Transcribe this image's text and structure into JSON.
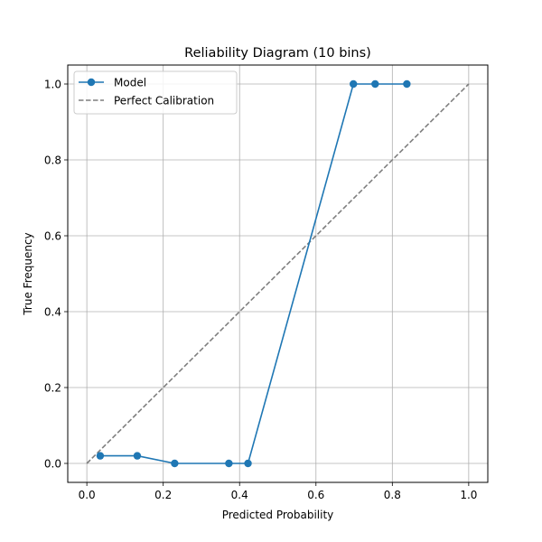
{
  "chart_data": {
    "type": "line",
    "title": "Reliability Diagram (10 bins)",
    "xlabel": "Predicted Probability",
    "ylabel": "True Frequency",
    "xlim": [
      -0.05,
      1.05
    ],
    "ylim": [
      -0.05,
      1.05
    ],
    "xticks": [
      0.0,
      0.2,
      0.4,
      0.6,
      0.8,
      1.0
    ],
    "yticks": [
      0.0,
      0.2,
      0.4,
      0.6,
      0.8,
      1.0
    ],
    "xtick_labels": [
      "0.0",
      "0.2",
      "0.4",
      "0.6",
      "0.8",
      "1.0"
    ],
    "ytick_labels": [
      "0.0",
      "0.2",
      "0.4",
      "0.6",
      "0.8",
      "1.0"
    ],
    "grid": true,
    "legend_position": "top-left",
    "series": [
      {
        "name": "Model",
        "style": "solid-with-markers",
        "color": "#1f77b4",
        "x": [
          0.035,
          0.132,
          0.23,
          0.372,
          0.422,
          0.698,
          0.755,
          0.838
        ],
        "y": [
          0.02,
          0.02,
          0.0,
          0.0,
          0.0,
          1.0,
          1.0,
          1.0
        ]
      },
      {
        "name": "Perfect Calibration",
        "style": "dashed",
        "color": "#7f7f7f",
        "x": [
          0.0,
          1.0
        ],
        "y": [
          0.0,
          1.0
        ]
      }
    ]
  }
}
